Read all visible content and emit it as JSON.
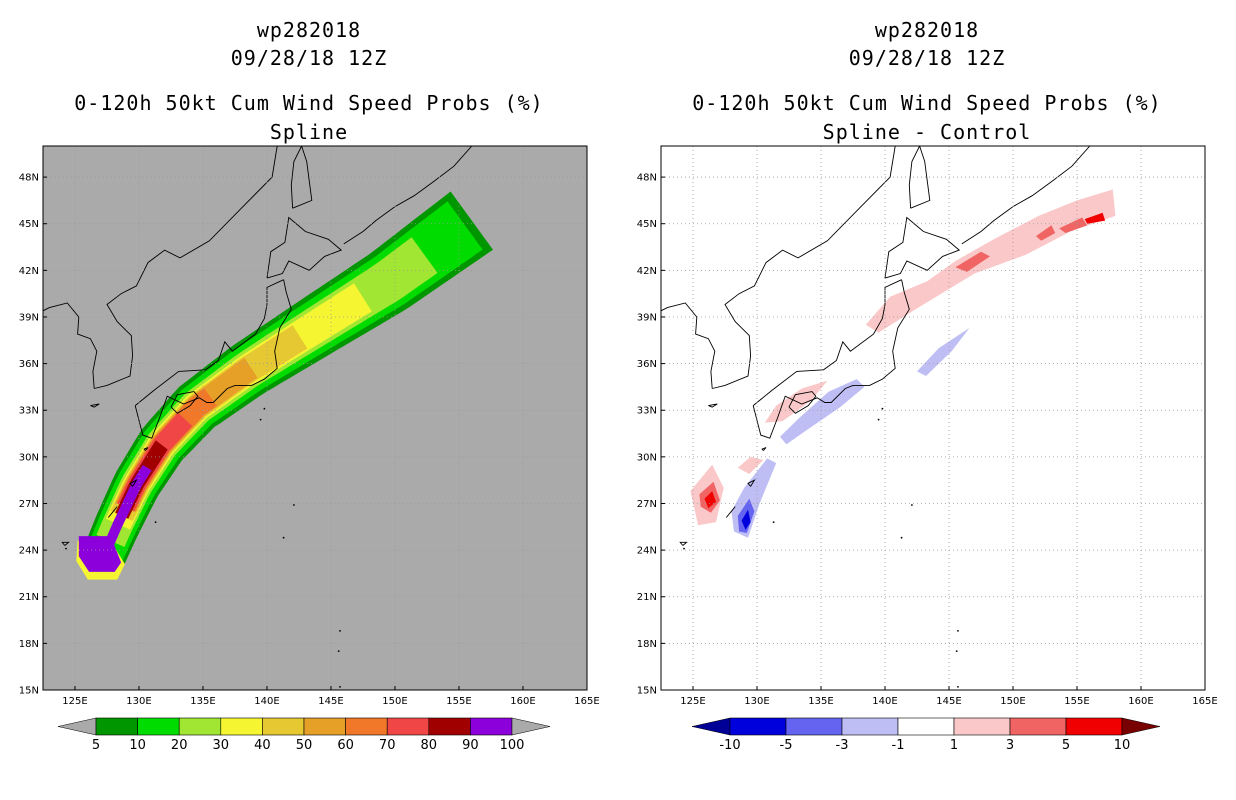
{
  "panels": [
    {
      "id": "left",
      "title_line1": "wp282018",
      "title_line2": "09/28/18 12Z",
      "title_line3": "0-120h 50kt Cum Wind Speed Probs (%)",
      "title_line4": "Spline",
      "background": "#aaaaaa",
      "colorbar": {
        "labels": [
          "5",
          "10",
          "20",
          "30",
          "40",
          "50",
          "60",
          "70",
          "80",
          "90",
          "100"
        ],
        "colors": [
          "#009600",
          "#00dc00",
          "#a0e632",
          "#f5f532",
          "#e6c832",
          "#e6a028",
          "#f07828",
          "#f04646",
          "#a00000",
          "#8c00dc"
        ],
        "end_colors": [
          "#aaaaaa",
          "#aaaaaa"
        ]
      }
    },
    {
      "id": "right",
      "title_line1": "wp282018",
      "title_line2": "09/28/18 12Z",
      "title_line3": "0-120h 50kt Cum Wind Speed Probs (%)",
      "title_line4": "Spline - Control",
      "background": "#ffffff",
      "colorbar": {
        "labels": [
          "-10",
          "-5",
          "-3",
          "-1",
          "1",
          "3",
          "5",
          "10"
        ],
        "colors": [
          "#0000dc",
          "#6464f0",
          "#bebef5",
          "#ffffff",
          "#fac8c8",
          "#f06464",
          "#f00000"
        ],
        "end_colors": [
          "#000096",
          "#780000"
        ]
      }
    }
  ],
  "axes": {
    "lat_labels": [
      "48N",
      "45N",
      "42N",
      "39N",
      "36N",
      "33N",
      "30N",
      "27N",
      "24N",
      "21N",
      "18N",
      "15N"
    ],
    "lon_labels": [
      "125E",
      "130E",
      "135E",
      "140E",
      "145E",
      "150E",
      "155E",
      "160E",
      "165E"
    ],
    "lat_range": [
      15,
      50
    ],
    "lon_range": [
      122.5,
      165
    ]
  }
}
